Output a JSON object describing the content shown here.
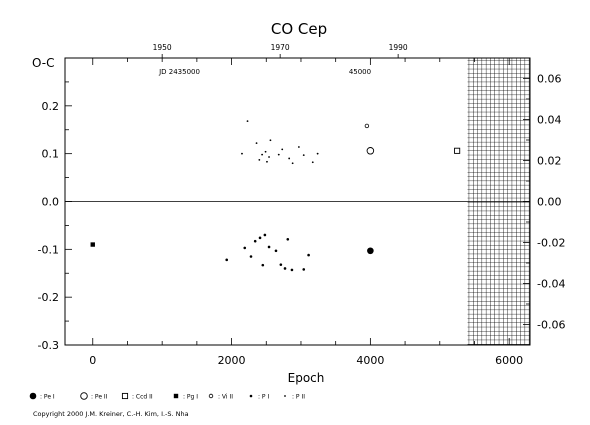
{
  "chart_data": {
    "type": "scatter",
    "title": "CO Cep",
    "xlabel": "Epoch",
    "ylabel_left": "O-C",
    "xlim": [
      -400,
      6300
    ],
    "ylim": [
      -0.3,
      0.3
    ],
    "ylim_right": [
      -0.07,
      0.07
    ],
    "x_ticks": [
      "0",
      "2000",
      "4000",
      "6000"
    ],
    "y_ticks": [
      "0.2",
      "0.1",
      "0.0",
      "-0.1",
      "-0.2",
      "-0.3"
    ],
    "y_ticks_values": [
      0.2,
      0.1,
      0.0,
      -0.1,
      -0.2,
      -0.3
    ],
    "yr_ticks": [
      "0.06",
      "0.04",
      "0.02",
      "0.00",
      "-0.02",
      "-0.04",
      "-0.06"
    ],
    "yr_ticks_values": [
      0.06,
      0.04,
      0.02,
      0.0,
      -0.02,
      -0.04,
      -0.06
    ],
    "top_year_ticks": [
      {
        "label": "1950",
        "epoch": 1000
      },
      {
        "label": "1970",
        "epoch": 2700
      },
      {
        "label": "1990",
        "epoch": 4400
      }
    ],
    "top_jd_labels": [
      {
        "label": "JD 2435000",
        "epoch": 1250
      },
      {
        "label": "45000",
        "epoch": 3850
      }
    ],
    "hatched_region": {
      "from_epoch": 5400,
      "to_epoch": 6300
    },
    "legend": [
      "Pe I",
      "Pe II",
      "Ccd II",
      "Pg I",
      "Vi II",
      "P I",
      "P II"
    ],
    "series": [
      {
        "name": "Pe I",
        "marker": "filled-circle",
        "points": [
          [
            4000,
            -0.103
          ]
        ]
      },
      {
        "name": "Pe II",
        "marker": "open-circle",
        "points": [
          [
            4000,
            0.106
          ]
        ]
      },
      {
        "name": "Ccd II",
        "marker": "open-square",
        "points": [
          [
            5250,
            0.106
          ]
        ]
      },
      {
        "name": "Pg I",
        "marker": "filled-square",
        "points": [
          [
            0,
            -0.09
          ]
        ]
      },
      {
        "name": "Vi II",
        "marker": "small-open-circle",
        "points": [
          [
            3950,
            0.158
          ]
        ]
      },
      {
        "name": "P I",
        "marker": "small-dot",
        "points": [
          [
            1930,
            -0.122
          ],
          [
            2190,
            -0.097
          ],
          [
            2280,
            -0.115
          ],
          [
            2340,
            -0.083
          ],
          [
            2410,
            -0.076
          ],
          [
            2450,
            -0.133
          ],
          [
            2480,
            -0.07
          ],
          [
            2540,
            -0.095
          ],
          [
            2640,
            -0.103
          ],
          [
            2710,
            -0.132
          ],
          [
            2770,
            -0.14
          ],
          [
            2810,
            -0.079
          ],
          [
            2870,
            -0.143
          ],
          [
            3040,
            -0.142
          ],
          [
            3110,
            -0.112
          ]
        ]
      },
      {
        "name": "P II",
        "marker": "tiny-dot",
        "points": [
          [
            2150,
            0.1
          ],
          [
            2230,
            0.168
          ],
          [
            2360,
            0.122
          ],
          [
            2400,
            0.087
          ],
          [
            2440,
            0.098
          ],
          [
            2490,
            0.104
          ],
          [
            2510,
            0.083
          ],
          [
            2540,
            0.093
          ],
          [
            2560,
            0.128
          ],
          [
            2680,
            0.098
          ],
          [
            2730,
            0.109
          ],
          [
            2830,
            0.09
          ],
          [
            2880,
            0.08
          ],
          [
            2970,
            0.114
          ],
          [
            3040,
            0.097
          ],
          [
            3170,
            0.082
          ],
          [
            3240,
            0.1
          ]
        ]
      }
    ]
  },
  "footer": {
    "copyright": "Copyright 2000 J.M. Kreiner, C.-H. Kim, I.-S. Nha"
  }
}
